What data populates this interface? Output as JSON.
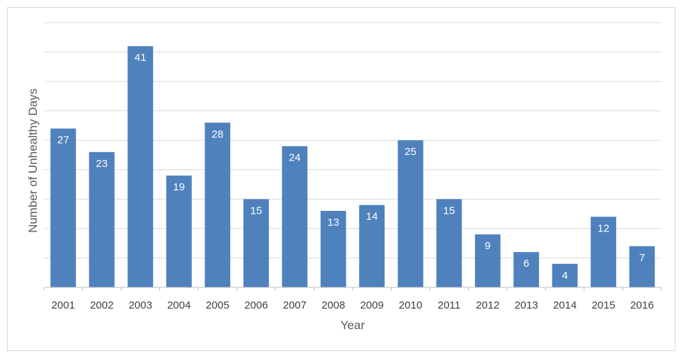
{
  "chart_data": {
    "type": "bar",
    "title": "",
    "xlabel": "Year",
    "ylabel": "Number of Unhealthy Days",
    "categories": [
      "2001",
      "2002",
      "2003",
      "2004",
      "2005",
      "2006",
      "2007",
      "2008",
      "2009",
      "2010",
      "2011",
      "2012",
      "2013",
      "2014",
      "2015",
      "2016"
    ],
    "values": [
      27,
      23,
      41,
      19,
      28,
      15,
      24,
      13,
      14,
      25,
      15,
      9,
      6,
      4,
      12,
      7
    ],
    "ylim": [
      0,
      45
    ],
    "grid": true,
    "legend": "none",
    "data_labels": true,
    "bar_color": "#4f81bd",
    "gridline_color": "#d9d9d9",
    "axis_color": "#bfbfbf"
  }
}
